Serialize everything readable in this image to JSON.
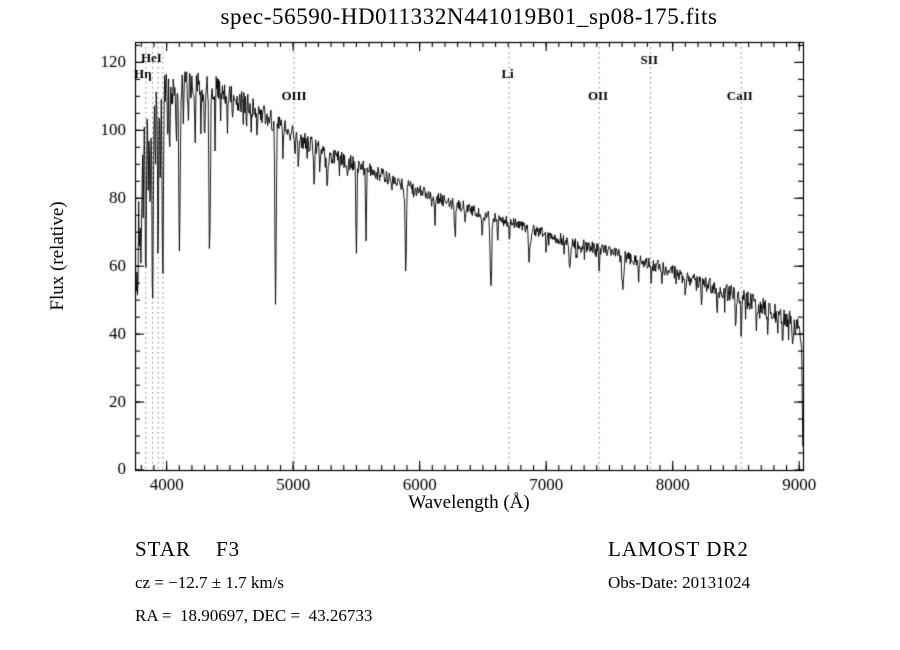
{
  "window": {
    "background": "#ffffff",
    "foreground": "#000000"
  },
  "chart_data": {
    "type": "line",
    "title": "spec-56590-HD011332N441019B01_sp08-175.fits",
    "xlabel": "Wavelength (Å)",
    "ylabel": "Flux (relative)",
    "xlim": [
      3750,
      9030
    ],
    "ylim": [
      0,
      126
    ],
    "xticks": [
      4000,
      5000,
      6000,
      7000,
      8000,
      9000
    ],
    "yticks": [
      0,
      20,
      40,
      60,
      80,
      100,
      120
    ],
    "x_minor_step": 100,
    "y_minor_step": 5,
    "grid": false,
    "legend": "none",
    "axis_color": "#000000",
    "line_color": "#000000",
    "dotted_line_color": "rgba(0,0,0,0.5)",
    "marked_lines": [
      {
        "label": "HeI",
        "wavelength": 3889,
        "label_wavelength": 3880,
        "label_flux": 121
      },
      {
        "label": "Hη",
        "wavelength": 3835,
        "label_wavelength": 3812,
        "label_flux": 116.5
      },
      {
        "label": "OIII",
        "wavelength": 5007,
        "label_wavelength": 5007,
        "label_flux": 110
      },
      {
        "label": "Li",
        "wavelength": 6708,
        "label_wavelength": 6695,
        "label_flux": 116.5
      },
      {
        "label": "OII",
        "wavelength": 7420,
        "label_wavelength": 7410,
        "label_flux": 110
      },
      {
        "label": "SII",
        "wavelength": 7825,
        "label_wavelength": 7815,
        "label_flux": 120.5
      },
      {
        "label": "CaII",
        "wavelength": 8542,
        "label_wavelength": 8530,
        "label_flux": 110
      }
    ],
    "extra_dotted_lines": [
      3933,
      3970
    ],
    "spectrum": {
      "samples": 1180,
      "range": [
        3752,
        9028
      ],
      "continuum": [
        [
          3750,
          62
        ],
        [
          3765,
          85
        ],
        [
          3785,
          98
        ],
        [
          3810,
          105
        ],
        [
          3850,
          109
        ],
        [
          3900,
          111
        ],
        [
          3960,
          112
        ],
        [
          4050,
          112.5
        ],
        [
          4150,
          113.5
        ],
        [
          4250,
          114
        ],
        [
          4350,
          113
        ],
        [
          4450,
          111.5
        ],
        [
          4550,
          109.5
        ],
        [
          4650,
          107.5
        ],
        [
          4750,
          105
        ],
        [
          4850,
          102.5
        ],
        [
          4950,
          100
        ],
        [
          5050,
          97.5
        ],
        [
          5150,
          95.5
        ],
        [
          5250,
          93.5
        ],
        [
          5350,
          92
        ],
        [
          5450,
          90.5
        ],
        [
          5550,
          89
        ],
        [
          5650,
          87.5
        ],
        [
          5750,
          86
        ],
        [
          5850,
          84.5
        ],
        [
          5950,
          83
        ],
        [
          6050,
          81.5
        ],
        [
          6150,
          80
        ],
        [
          6250,
          78.5
        ],
        [
          6350,
          77.5
        ],
        [
          6450,
          76
        ],
        [
          6550,
          74.5
        ],
        [
          6650,
          73.5
        ],
        [
          6750,
          72.5
        ],
        [
          6850,
          71
        ],
        [
          6950,
          70
        ],
        [
          7050,
          69
        ],
        [
          7150,
          67.5
        ],
        [
          7250,
          66.5
        ],
        [
          7350,
          65.5
        ],
        [
          7450,
          64.5
        ],
        [
          7550,
          63.5
        ],
        [
          7650,
          62.5
        ],
        [
          7750,
          61.5
        ],
        [
          7850,
          60.5
        ],
        [
          7950,
          59
        ],
        [
          8050,
          57.5
        ],
        [
          8150,
          56.5
        ],
        [
          8250,
          55
        ],
        [
          8350,
          53.5
        ],
        [
          8450,
          52
        ],
        [
          8550,
          50.5
        ],
        [
          8650,
          49
        ],
        [
          8750,
          47.5
        ],
        [
          8850,
          45.5
        ],
        [
          8950,
          43.5
        ],
        [
          9000,
          42
        ],
        [
          9012,
          40.5
        ],
        [
          9020,
          36
        ],
        [
          9026,
          12
        ],
        [
          9028,
          4
        ]
      ],
      "absorption_lines": [
        [
          3760,
          30,
          4
        ],
        [
          3772,
          40,
          4
        ],
        [
          3785,
          35,
          4
        ],
        [
          3798,
          45,
          5
        ],
        [
          3815,
          30,
          4
        ],
        [
          3835,
          58,
          5
        ],
        [
          3855,
          25,
          4
        ],
        [
          3870,
          30,
          4
        ],
        [
          3889,
          62,
          5
        ],
        [
          3910,
          22,
          4
        ],
        [
          3933,
          52,
          4
        ],
        [
          3950,
          24,
          4
        ],
        [
          3970,
          58,
          5
        ],
        [
          4009,
          14,
          3
        ],
        [
          4026,
          20,
          3
        ],
        [
          4077,
          16,
          3
        ],
        [
          4102,
          48,
          6
        ],
        [
          4132,
          12,
          3
        ],
        [
          4172,
          12,
          3
        ],
        [
          4226,
          18,
          3
        ],
        [
          4271,
          12,
          3
        ],
        [
          4300,
          15,
          4
        ],
        [
          4340,
          48,
          6
        ],
        [
          4383,
          16,
          3
        ],
        [
          4427,
          10,
          3
        ],
        [
          4481,
          12,
          3
        ],
        [
          4520,
          9,
          3
        ],
        [
          4630,
          8,
          3
        ],
        [
          4668,
          9,
          3
        ],
        [
          4713,
          7,
          3
        ],
        [
          4861,
          52,
          5
        ],
        [
          4920,
          9,
          3
        ],
        [
          5015,
          7,
          3
        ],
        [
          5041,
          7,
          3
        ],
        [
          5167,
          11,
          4
        ],
        [
          5210,
          7,
          3
        ],
        [
          5270,
          9,
          4
        ],
        [
          5430,
          7,
          3
        ],
        [
          5500,
          28,
          4
        ],
        [
          5577,
          24,
          3
        ],
        [
          5890,
          25,
          5
        ],
        [
          6122,
          7,
          3
        ],
        [
          6280,
          9,
          5
        ],
        [
          6360,
          6,
          4
        ],
        [
          6495,
          7,
          3
        ],
        [
          6563,
          20,
          6
        ],
        [
          6617,
          5,
          3
        ],
        [
          6710,
          6,
          3
        ],
        [
          6867,
          9,
          6
        ],
        [
          7000,
          5,
          3
        ],
        [
          7186,
          7,
          6
        ],
        [
          7240,
          5,
          4
        ],
        [
          7420,
          6,
          4
        ],
        [
          7605,
          10,
          7
        ],
        [
          7730,
          5,
          4
        ],
        [
          7830,
          6,
          4
        ],
        [
          8100,
          5,
          4
        ],
        [
          8228,
          6,
          4
        ],
        [
          8350,
          5,
          3
        ],
        [
          8498,
          8,
          4
        ],
        [
          8542,
          10,
          4
        ],
        [
          8662,
          9,
          4
        ],
        [
          8750,
          6,
          4
        ],
        [
          8870,
          7,
          4
        ],
        [
          8950,
          8,
          4
        ]
      ],
      "noise": {
        "seed": 20131024,
        "profile": [
          [
            3750,
            6.5
          ],
          [
            4000,
            5
          ],
          [
            4400,
            3.8
          ],
          [
            4800,
            3
          ],
          [
            5400,
            2.3
          ],
          [
            6000,
            1.9
          ],
          [
            6800,
            1.6
          ],
          [
            7400,
            1.9
          ],
          [
            8000,
            2.2
          ],
          [
            8600,
            2.7
          ],
          [
            9028,
            3
          ]
        ],
        "spike_prob": 0.06,
        "spike_scale": 2
      }
    }
  },
  "annotations": {
    "object_class": "STAR    F3",
    "survey": "LAMOST DR2",
    "radial_velocity": "cz = −12.7 ± 1.7 km/s",
    "obs_date": "Obs-Date: 20131024",
    "coordinates": "RA =  18.90697, DEC =  43.26733"
  }
}
